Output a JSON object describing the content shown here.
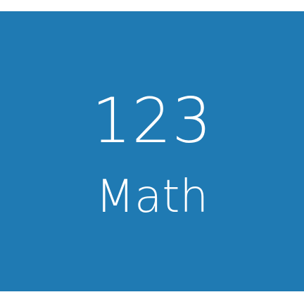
{
  "tile": {
    "number": "123",
    "label": "Math",
    "background_color": "#1f7ab3",
    "text_color": "#ffffff"
  }
}
